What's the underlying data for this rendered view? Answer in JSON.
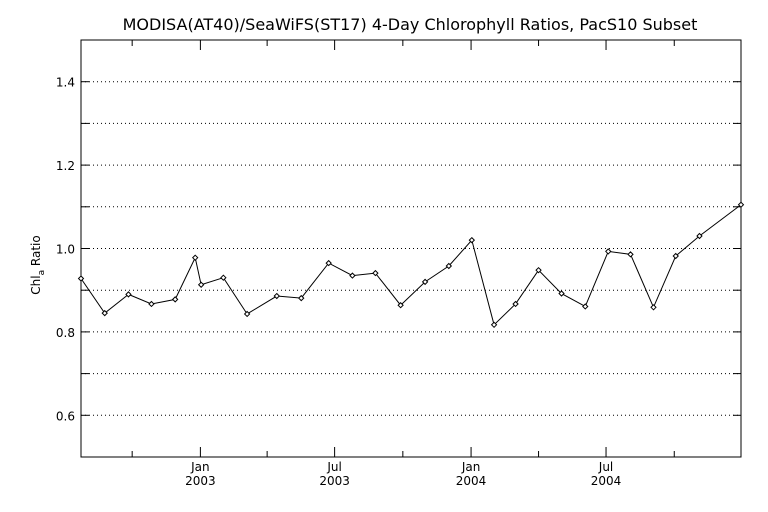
{
  "chart_data": {
    "type": "line",
    "title": "MODISA(AT40)/SeaWiFS(ST17) 4-Day Chlorophyll Ratios, PacS10 Subset",
    "ylabel": "Chl_a Ratio",
    "xlabel": "",
    "ylim": [
      0.5,
      1.5
    ],
    "xlim": [
      "2002-07-24",
      "2004-12-30"
    ],
    "grid": true,
    "y_ticks": [
      {
        "value": 0.6,
        "label": "0.6"
      },
      {
        "value": 0.8,
        "label": "0.8"
      },
      {
        "value": 1.0,
        "label": "1.0"
      },
      {
        "value": 1.2,
        "label": "1.2"
      },
      {
        "value": 1.4,
        "label": "1.4"
      }
    ],
    "y_grid": [
      0.6,
      0.7,
      0.8,
      0.9,
      1.0,
      1.1,
      1.2,
      1.3,
      1.4
    ],
    "x_ticks": [
      {
        "date": "2003-01-01",
        "label_top": "Jan",
        "label_bottom": "2003"
      },
      {
        "date": "2003-07-01",
        "label_top": "Jul",
        "label_bottom": "2003"
      },
      {
        "date": "2004-01-01",
        "label_top": "Jan",
        "label_bottom": "2004"
      },
      {
        "date": "2004-07-01",
        "label_top": "Jul",
        "label_bottom": "2004"
      }
    ],
    "x_minor_ticks": [
      "2002-10-01",
      "2003-04-01",
      "2003-10-01",
      "2004-04-01",
      "2004-10-01"
    ],
    "series": [
      {
        "points": [
          {
            "x": "2002-07-24",
            "y": 0.928
          },
          {
            "x": "2002-08-25",
            "y": 0.845
          },
          {
            "x": "2002-09-26",
            "y": 0.89
          },
          {
            "x": "2002-10-27",
            "y": 0.867
          },
          {
            "x": "2002-11-28",
            "y": 0.878
          },
          {
            "x": "2002-12-25",
            "y": 0.978
          },
          {
            "x": "2003-01-02",
            "y": 0.913
          },
          {
            "x": "2003-02-01",
            "y": 0.93
          },
          {
            "x": "2003-03-05",
            "y": 0.843
          },
          {
            "x": "2003-04-14",
            "y": 0.886
          },
          {
            "x": "2003-05-17",
            "y": 0.881
          },
          {
            "x": "2003-06-23",
            "y": 0.965
          },
          {
            "x": "2003-07-25",
            "y": 0.935
          },
          {
            "x": "2003-08-25",
            "y": 0.941
          },
          {
            "x": "2003-09-28",
            "y": 0.864
          },
          {
            "x": "2003-10-31",
            "y": 0.92
          },
          {
            "x": "2003-12-02",
            "y": 0.958
          },
          {
            "x": "2004-01-02",
            "y": 1.02
          },
          {
            "x": "2004-02-01",
            "y": 0.817
          },
          {
            "x": "2004-03-01",
            "y": 0.867
          },
          {
            "x": "2004-04-01",
            "y": 0.948
          },
          {
            "x": "2004-05-02",
            "y": 0.892
          },
          {
            "x": "2004-06-03",
            "y": 0.861
          },
          {
            "x": "2004-07-04",
            "y": 0.993
          },
          {
            "x": "2004-08-03",
            "y": 0.986
          },
          {
            "x": "2004-09-03",
            "y": 0.859
          },
          {
            "x": "2004-10-03",
            "y": 0.982
          },
          {
            "x": "2004-11-04",
            "y": 1.03
          },
          {
            "x": "2004-12-30",
            "y": 1.105
          }
        ]
      }
    ]
  }
}
